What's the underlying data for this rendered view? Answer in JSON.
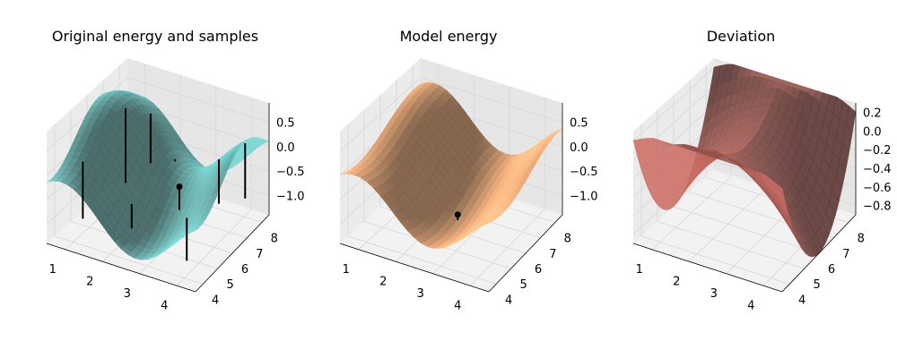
{
  "chart_data": [
    {
      "type": "surface3d",
      "title": "Original energy and samples",
      "surface_color": "#5fb0ad",
      "x_ticks": [
        1,
        2,
        3,
        4
      ],
      "y_ticks": [
        4,
        5,
        6,
        7,
        8
      ],
      "z_ticks": [
        "0.5",
        "0.0",
        "−0.5",
        "−1.0"
      ],
      "xlim": [
        0.5,
        4.5
      ],
      "ylim": [
        3.5,
        8.5
      ],
      "zlim": [
        -1.4,
        0.9
      ],
      "surface": {
        "z0": -0.2,
        "ax": 0.6,
        "ay": 0.5,
        "cx": 1.0,
        "cy": 0.85,
        "px": 0.3,
        "py": 2.9
      },
      "samples": [
        {
          "x": 1.0,
          "y": 4.6,
          "z": -1.1
        },
        {
          "x": 1.3,
          "y": 6.6,
          "z": -0.9
        },
        {
          "x": 1.6,
          "y": 7.5,
          "z": -0.7
        },
        {
          "x": 2.2,
          "y": 4.9,
          "z": -1.1
        },
        {
          "x": 2.5,
          "y": 7.0,
          "z": -0.3
        },
        {
          "x": 3.0,
          "y": 6.1,
          "z": -0.9
        },
        {
          "x": 3.7,
          "y": 4.9,
          "z": -1.4
        },
        {
          "x": 3.8,
          "y": 6.8,
          "z": -0.8
        },
        {
          "x": 4.2,
          "y": 7.6,
          "z": -0.85
        }
      ],
      "highlight": {
        "x": 3.0,
        "y": 6.1
      }
    },
    {
      "type": "surface3d",
      "title": "Model energy",
      "surface_color": "#e8a06a",
      "x_ticks": [
        1,
        2,
        3,
        4
      ],
      "y_ticks": [
        4,
        5,
        6,
        7,
        8
      ],
      "z_ticks": [
        "0.5",
        "0.0",
        "−0.5",
        "−1.0"
      ],
      "xlim": [
        0.5,
        4.5
      ],
      "ylim": [
        3.5,
        8.5
      ],
      "zlim": [
        -1.4,
        0.9
      ],
      "surface": {
        "z0": -0.25,
        "ax": 0.55,
        "ay": 0.3,
        "cx": 1.0,
        "cy": 0.7,
        "px": 0.3,
        "py": 2.7
      },
      "samples": [
        {
          "x": 2.8,
          "y": 5.6,
          "z": -1.0
        }
      ],
      "highlight": {
        "x": 2.8,
        "y": 5.6
      }
    },
    {
      "type": "surface3d",
      "title": "Deviation",
      "surface_color": "#a85a52",
      "x_ticks": [
        1,
        2,
        3,
        4
      ],
      "y_ticks": [
        4,
        5,
        6,
        7,
        8
      ],
      "z_ticks": [
        "0.2",
        "0.0",
        "−0.2",
        "−0.4",
        "−0.6",
        "−0.8"
      ],
      "xlim": [
        0.5,
        4.5
      ],
      "ylim": [
        3.5,
        8.5
      ],
      "zlim": [
        -0.9,
        0.3
      ],
      "surface": {
        "z0": 0.2,
        "mode": "saddle"
      },
      "samples": [],
      "highlight": null
    }
  ]
}
